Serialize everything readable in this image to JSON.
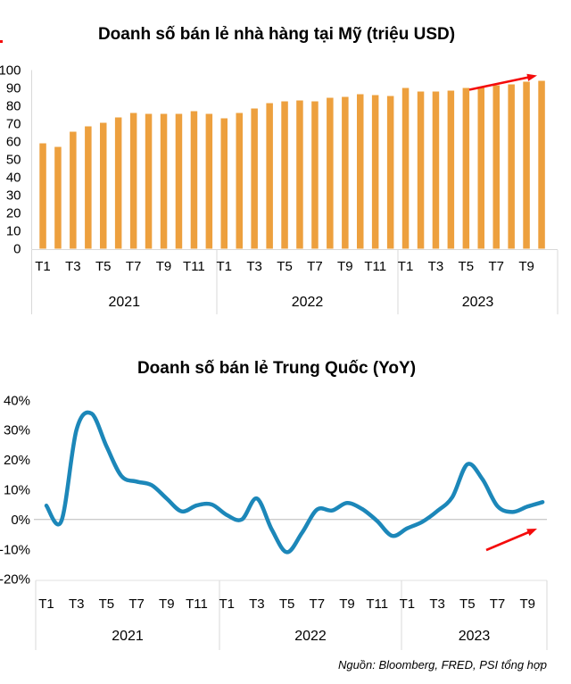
{
  "page": {
    "source_note": "Nguồn: Bloomberg, FRED, PSI tổng hợp"
  },
  "colors": {
    "bar_orange": "#EDA03E",
    "line_blue": "#1C87B9",
    "arrow_red": "#F40B0B",
    "axis_gray": "#D9D9D9",
    "zero_line_gray": "#CBCBCB",
    "text_black": "#000000"
  },
  "chart_data": [
    {
      "type": "bar",
      "title": "Doanh số bán lẻ nhà hàng tại Mỹ (triệu USD)",
      "ylim": [
        0,
        100
      ],
      "yticks": [
        0,
        10,
        20,
        30,
        40,
        50,
        60,
        70,
        80,
        90,
        100
      ],
      "ytick_labels": [
        "0",
        "10",
        "20",
        "30",
        "40",
        "50",
        "60",
        "70",
        "80",
        "90",
        "100"
      ],
      "grid": "none",
      "legend": "none",
      "annotation": {
        "shape": "trend-arrow-up-right",
        "position": "top-right",
        "color": "#F40B0B"
      },
      "year_groups": [
        {
          "label": "2021",
          "categories": [
            "T1",
            "T2",
            "T3",
            "T4",
            "T5",
            "T6",
            "T7",
            "T8",
            "T9",
            "T10",
            "T11",
            "T12"
          ],
          "shown_ticks": [
            "T1",
            "T3",
            "T5",
            "T7",
            "T9",
            "T11"
          ],
          "values": [
            59,
            57,
            65.5,
            68.5,
            70.5,
            73.5,
            76,
            75.5,
            75.5,
            75.5,
            77,
            75.5
          ]
        },
        {
          "label": "2022",
          "categories": [
            "T1",
            "T2",
            "T3",
            "T4",
            "T5",
            "T6",
            "T7",
            "T8",
            "T9",
            "T10",
            "T11",
            "T12"
          ],
          "shown_ticks": [
            "T1",
            "T3",
            "T5",
            "T7",
            "T9",
            "T11"
          ],
          "values": [
            73,
            76,
            78.5,
            81.5,
            82.5,
            83,
            82.5,
            84.5,
            85,
            86.5,
            86,
            85.5
          ]
        },
        {
          "label": "2023",
          "categories": [
            "T1",
            "T2",
            "T3",
            "T4",
            "T5",
            "T6",
            "T7",
            "T8",
            "T9",
            "T10"
          ],
          "shown_ticks": [
            "T1",
            "T3",
            "T5",
            "T7",
            "T9"
          ],
          "values": [
            90,
            88,
            88,
            88.5,
            90,
            90.5,
            91.5,
            92,
            93.5,
            94
          ]
        }
      ]
    },
    {
      "type": "line",
      "title": "Doanh số bán lẻ Trung Quốc (YoY)",
      "unit": "%",
      "ylim": [
        -20,
        40
      ],
      "yticks": [
        40,
        30,
        20,
        10,
        0,
        -10,
        -20
      ],
      "ytick_labels": [
        "40%",
        "30%",
        "20%",
        "10%",
        "0%",
        "-10%",
        "-20%"
      ],
      "grid": "zero-line-only",
      "legend": "none",
      "annotation": {
        "shape": "trend-arrow-up-right",
        "position": "bottom-right",
        "color": "#F40B0B"
      },
      "year_groups": [
        {
          "label": "2021",
          "categories": [
            "T1",
            "T2",
            "T3",
            "T4",
            "T5",
            "T6",
            "T7",
            "T8",
            "T9",
            "T10",
            "T11",
            "T12"
          ],
          "shown_ticks": [
            "T1",
            "T3",
            "T5",
            "T7",
            "T9",
            "T11"
          ],
          "values": [
            4.6,
            -0.5,
            30,
            35.5,
            24.5,
            14.5,
            12.7,
            11.5,
            7,
            2.7,
            4.7,
            5
          ]
        },
        {
          "label": "2022",
          "categories": [
            "T1",
            "T2",
            "T3",
            "T4",
            "T5",
            "T6",
            "T7",
            "T8",
            "T9",
            "T10",
            "T11",
            "T12"
          ],
          "shown_ticks": [
            "T1",
            "T3",
            "T5",
            "T7",
            "T9",
            "T11"
          ],
          "values": [
            1.5,
            0,
            7,
            -3.5,
            -11,
            -4.5,
            3.3,
            3,
            5.5,
            3.5,
            -0.5,
            -5.5
          ]
        },
        {
          "label": "2023",
          "categories": [
            "T1",
            "T2",
            "T3",
            "T4",
            "T5",
            "T6",
            "T7",
            "T8",
            "T9",
            "T10"
          ],
          "shown_ticks": [
            "T1",
            "T3",
            "T5",
            "T7",
            "T9"
          ],
          "values": [
            -3,
            -0.8,
            2.8,
            7.5,
            18.5,
            13.5,
            4.5,
            2.5,
            4.3,
            5.8
          ]
        }
      ]
    }
  ]
}
